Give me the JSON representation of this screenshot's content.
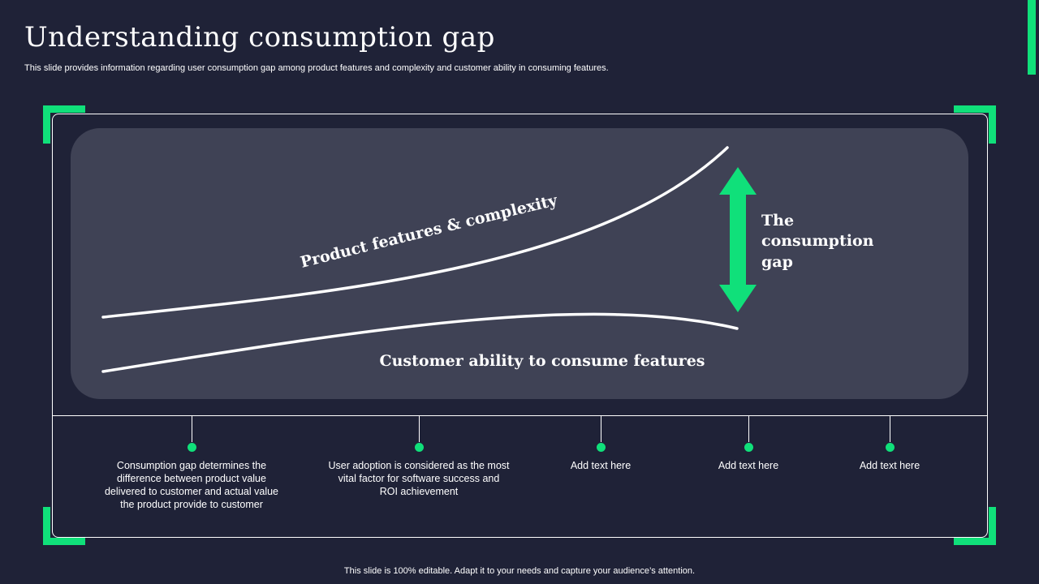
{
  "slide": {
    "title": "Understanding consumption gap",
    "subtitle": "This slide provides information regarding user consumption gap among product features and complexity and customer ability in consuming features.",
    "footer": "This slide is 100% editable. Adapt it to your needs and capture your audience’s attention."
  },
  "diagram": {
    "upper_curve_label": "Product features & complexity",
    "lower_curve_label": "Customer ability to consume features",
    "gap_label_lines": [
      "The",
      "consumption",
      "gap"
    ]
  },
  "points": [
    {
      "text": "Consumption gap determines the difference between product value delivered to customer and actual value the product provide to customer"
    },
    {
      "text": "User adoption is considered as the most vital factor for software success and ROI achievement"
    },
    {
      "text": "Add text here"
    },
    {
      "text": "Add text here"
    },
    {
      "text": "Add text here"
    }
  ],
  "colors": {
    "background": "#1f2237",
    "panel": "#3f4255",
    "accent": "#10e07a",
    "text": "#ffffff"
  }
}
